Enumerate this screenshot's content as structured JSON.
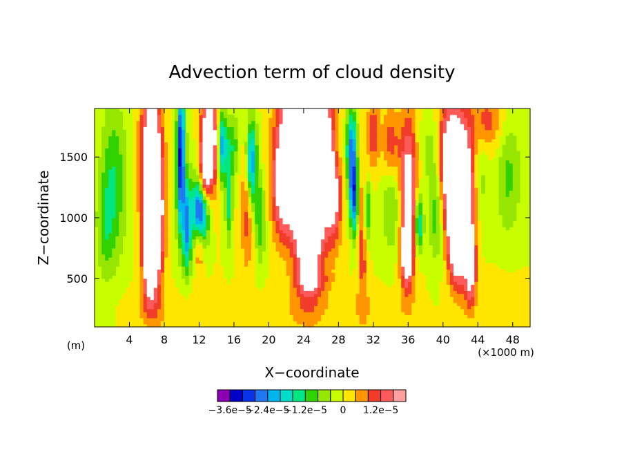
{
  "chart_data": {
    "type": "heatmap",
    "title": "Advection term of cloud density",
    "xlabel": "X−coordinate",
    "ylabel": "Z−coordinate",
    "x_unit": "(×1000 m)",
    "y_unit": "(m)",
    "xlim": [
      0,
      50
    ],
    "ylim": [
      100,
      1900
    ],
    "xticks": [
      4,
      8,
      12,
      16,
      20,
      24,
      28,
      32,
      36,
      40,
      44,
      48
    ],
    "yticks": [
      500,
      1000,
      1500
    ],
    "grid": false,
    "colorbar": {
      "levels": [
        -3.6e-05,
        -3.2e-05,
        -2.8e-05,
        -2.4e-05,
        -2e-05,
        -1.6e-05,
        -1.2e-05,
        -8e-06,
        -4e-06,
        0,
        4e-06,
        8e-06,
        1.2e-05,
        1.6e-05
      ],
      "tick_labels": [
        "−3.6e−5",
        "−2.4e−5",
        "−1.2e−5",
        "0",
        "1.2e−5"
      ],
      "tick_level_index": [
        0,
        3,
        6,
        9,
        12
      ],
      "colors": [
        "#8c00b4",
        "#0000c8",
        "#0a32e6",
        "#1e78f0",
        "#00b4f0",
        "#00dcc8",
        "#00e682",
        "#32d200",
        "#96e600",
        "#c8ff00",
        "#ffe600",
        "#ff9600",
        "#f03c28",
        "#ff5a5a",
        "#ffa0a0"
      ],
      "over_color": "#ffffff"
    },
    "regions": [
      {
        "note": "positive cores (white = above max level)",
        "x": [
          6.5,
          13,
          24,
          36.5,
          41
        ],
        "z_top": [
          1900,
          1900,
          1900,
          1600,
          1600
        ]
      },
      {
        "note": "negative cores (blue/purple)",
        "x": [
          10,
          12,
          18,
          29.5,
          37
        ],
        "z": [
          1600,
          1000,
          1400,
          1200,
          900
        ]
      }
    ]
  }
}
